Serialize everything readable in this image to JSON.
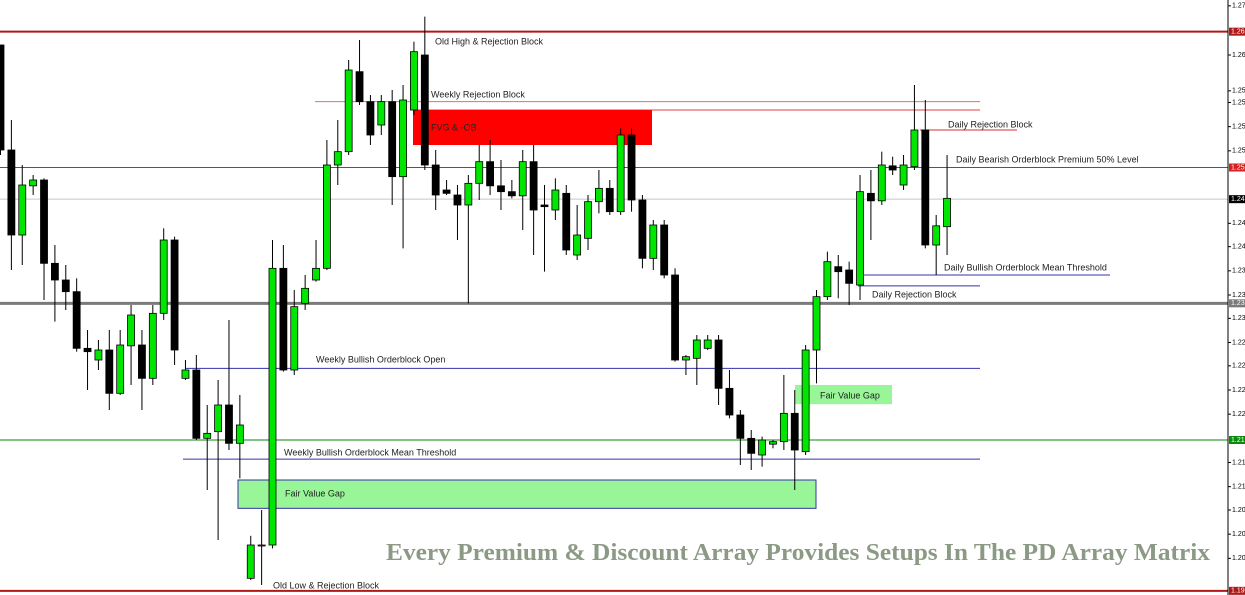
{
  "chart_data": {
    "type": "candlestick",
    "up_color": "#00e600",
    "down_color": "#000000",
    "ylim": [
      1.1944,
      1.2658
    ],
    "yticks": [
      {
        "value": 1.2651,
        "label": "1.27"
      },
      {
        "value": 1.2592,
        "label": "1.26"
      },
      {
        "value": 1.2549,
        "label": "1.25"
      },
      {
        "value": 1.2535,
        "label": "1.25"
      },
      {
        "value": 1.2506,
        "label": "1.25"
      },
      {
        "value": 1.2477,
        "label": "1.25"
      },
      {
        "value": 1.239,
        "label": "1.24"
      },
      {
        "value": 1.2362,
        "label": "1.24"
      },
      {
        "value": 1.2333,
        "label": "1.23"
      },
      {
        "value": 1.2304,
        "label": "1.23"
      },
      {
        "value": 1.2276,
        "label": "1.23"
      },
      {
        "value": 1.2247,
        "label": "1.22"
      },
      {
        "value": 1.2219,
        "label": "1.22"
      },
      {
        "value": 1.219,
        "label": "1.22"
      },
      {
        "value": 1.2161,
        "label": "1.22"
      },
      {
        "value": 1.2103,
        "label": "1.21"
      },
      {
        "value": 1.2074,
        "label": "1.21"
      },
      {
        "value": 1.2046,
        "label": "1.20"
      },
      {
        "value": 1.2017,
        "label": "1.20"
      },
      {
        "value": 1.1988,
        "label": "1.20"
      }
    ],
    "open": [
      1.2604,
      1.2478,
      1.2376,
      1.2435,
      1.2442,
      1.2342,
      1.2322,
      1.2308,
      1.224,
      1.2226,
      1.2238,
      1.2186,
      1.2243,
      1.2244,
      1.2204,
      1.2282,
      1.237,
      1.2204,
      1.2214,
      1.2132,
      1.214,
      1.2172,
      1.2126,
      1.1964,
      1.2003,
      1.2004,
      1.2336,
      1.2214,
      1.2294,
      1.2322,
      1.2336,
      1.246,
      1.2476,
      1.2572,
      1.2536,
      1.2508,
      1.2536,
      1.2446,
      1.2526,
      1.2592,
      1.246,
      1.243,
      1.2424,
      1.2412,
      1.2438,
      1.2464,
      1.2435,
      1.2428,
      1.2423,
      1.2464,
      1.2412,
      1.2406,
      1.2426,
      1.2352,
      1.2372,
      1.2416,
      1.2432,
      1.2404,
      1.2496,
      1.2418,
      1.2348,
      1.2388,
      1.2328,
      1.2226,
      1.2228,
      1.224,
      1.225,
      1.2192,
      1.216,
      1.2132,
      1.2112,
      1.2125,
      1.2128,
      1.2162,
      1.2116,
      1.2238,
      1.2302,
      1.2338,
      1.2334,
      1.2316,
      1.2426,
      1.2417,
      1.2459,
      1.2436,
      1.2458,
      1.2502,
      1.2364,
      1.2386
    ],
    "high": [
      1.2604,
      1.2514,
      1.246,
      1.2448,
      1.2444,
      1.2364,
      1.234,
      1.2324,
      1.2262,
      1.225,
      1.2262,
      1.2262,
      1.2292,
      1.2262,
      1.2292,
      1.2384,
      1.2374,
      1.2226,
      1.2232,
      1.2172,
      1.2202,
      1.2274,
      1.2184,
      1.2015,
      1.2046,
      1.237,
      1.2364,
      1.231,
      1.2328,
      1.237,
      1.249,
      1.2514,
      1.2586,
      1.261,
      1.2544,
      1.2544,
      1.255,
      1.2556,
      1.2608,
      1.2638,
      1.2478,
      1.2442,
      1.2436,
      1.2448,
      1.2484,
      1.249,
      1.2466,
      1.2442,
      1.2478,
      1.2484,
      1.2436,
      1.2444,
      1.2436,
      1.2412,
      1.2424,
      1.2454,
      1.2442,
      1.2504,
      1.2504,
      1.2424,
      1.2394,
      1.2394,
      1.2336,
      1.2232,
      1.2256,
      1.2256,
      1.2256,
      1.2214,
      1.2166,
      1.2142,
      1.2134,
      1.213,
      1.2208,
      1.219,
      1.2244,
      1.231,
      1.2356,
      1.2352,
      1.2344,
      1.2448,
      1.2454,
      1.2476,
      1.247,
      1.2472,
      1.2556,
      1.2538,
      1.24,
      1.2472
    ],
    "low": [
      1.2472,
      1.2334,
      1.234,
      1.2424,
      1.2298,
      1.2272,
      1.2286,
      1.2236,
      1.219,
      1.2214,
      1.2166,
      1.2184,
      1.2196,
      1.2166,
      1.2196,
      1.2274,
      1.222,
      1.2202,
      1.213,
      1.207,
      1.201,
      1.2118,
      1.2084,
      1.1962,
      1.1956,
      1.2,
      1.2212,
      1.2208,
      1.2286,
      1.232,
      1.2334,
      1.2436,
      1.2472,
      1.2532,
      1.2484,
      1.2496,
      1.2412,
      1.236,
      1.252,
      1.2454,
      1.2406,
      1.2424,
      1.237,
      1.2294,
      1.2418,
      1.2424,
      1.2406,
      1.242,
      1.2382,
      1.2352,
      1.2332,
      1.2394,
      1.2352,
      1.2346,
      1.2358,
      1.2402,
      1.24,
      1.24,
      1.2404,
      1.2336,
      1.2334,
      1.2324,
      1.2224,
      1.2208,
      1.2196,
      1.2238,
      1.2172,
      1.2156,
      1.21,
      1.2094,
      1.2098,
      1.212,
      1.2118,
      1.207,
      1.2112,
      1.2198,
      1.2298,
      1.23,
      1.2292,
      1.2298,
      1.237,
      1.2412,
      1.2448,
      1.243,
      1.2454,
      1.236,
      1.2328,
      1.2352
    ],
    "close": [
      1.2478,
      1.2376,
      1.2436,
      1.2442,
      1.2342,
      1.2322,
      1.2308,
      1.224,
      1.2236,
      1.2238,
      1.2186,
      1.2244,
      1.228,
      1.2204,
      1.2282,
      1.237,
      1.2238,
      1.2214,
      1.2132,
      1.2138,
      1.2172,
      1.2126,
      1.2148,
      1.2004,
      1.2004,
      1.2336,
      1.2214,
      1.229,
      1.2312,
      1.2336,
      1.246,
      1.2476,
      1.2574,
      1.2536,
      1.2496,
      1.2536,
      1.2446,
      1.2538,
      1.2596,
      1.246,
      1.2424,
      1.2426,
      1.2412,
      1.2438,
      1.2464,
      1.2435,
      1.2428,
      1.2423,
      1.2464,
      1.2406,
      1.241,
      1.243,
      1.2358,
      1.2376,
      1.2416,
      1.2432,
      1.2404,
      1.2496,
      1.2418,
      1.2348,
      1.2388,
      1.2328,
      1.2226,
      1.223,
      1.225,
      1.225,
      1.2192,
      1.216,
      1.2132,
      1.2114,
      1.213,
      1.2128,
      1.2162,
      1.2118,
      1.2238,
      1.2302,
      1.2344,
      1.2332,
      1.2318,
      1.2428,
      1.2417,
      1.246,
      1.2454,
      1.246,
      1.2502,
      1.2364,
      1.2387,
      1.242
    ],
    "levels": [
      {
        "value": 1.262,
        "label": "1.26",
        "color": "#b01818"
      },
      {
        "value": 1.2457,
        "label": "1.25",
        "color": "#d42020"
      },
      {
        "value": 1.2419,
        "label": "1.24",
        "color": "#000000"
      },
      {
        "value": 1.2294,
        "label": "1.23",
        "color": "#7a7a7a"
      },
      {
        "value": 1.213,
        "label": "1.21",
        "color": "#0a8a0a"
      },
      {
        "value": 1.1949,
        "label": "1.19",
        "color": "#b01818"
      }
    ],
    "annotations": [
      {
        "text": "Old High & Rejection Block"
      },
      {
        "text": "Weekly Rejection Block",
        "level": 1.2536
      },
      {
        "level": 1.2526
      },
      {
        "text": "FVG & -OB",
        "top": 1.2526,
        "bottom": 1.2484
      },
      {
        "text": "Daily Rejection Block",
        "level": 1.2502
      },
      {
        "text": "Daily Bearish Orderblock Premium 50% Level"
      },
      {
        "text": "Daily Bullish Orderblock Mean Threshold",
        "level": 1.2328
      },
      {
        "text": "Daily Rejection Block",
        "level": 1.2315
      },
      {
        "text": "Weekly Bullish Orderblock Open",
        "level": 1.2216
      },
      {
        "text": "Fair Value Gap",
        "top": 1.2196,
        "bottom": 1.2173
      },
      {
        "text": "Weekly Bullish Orderblock Mean Threshold",
        "level": 1.2107
      },
      {
        "text": "Fair Value Gap",
        "top": 1.2082,
        "bottom": 1.2048
      },
      {
        "text": "Old Low & Rejection Block"
      }
    ],
    "watermark": "Every Premium & Discount Array Provides Setups In The PD Array Matrix"
  }
}
